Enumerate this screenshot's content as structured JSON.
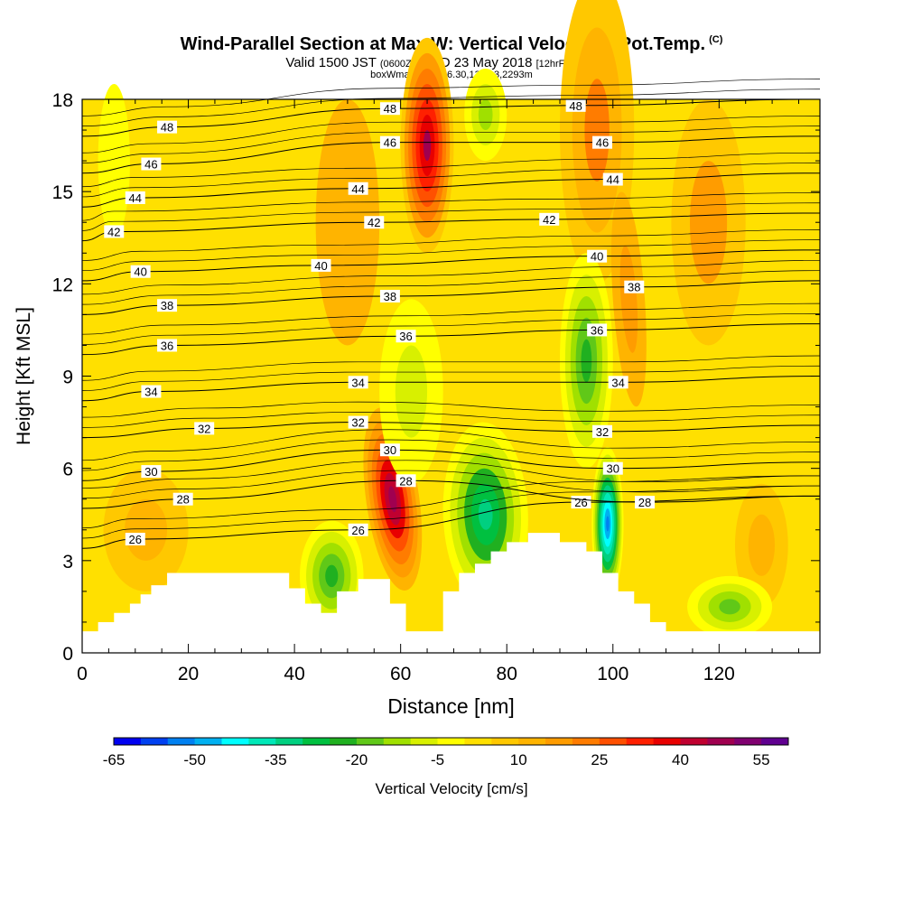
{
  "title": {
    "main": "Wind-Parallel Section at Max W: Vertical Velocity & Pot.Temp.",
    "copyright": "(C)",
    "line2_a": "Valid 1500 JST",
    "line2_b": "(0600Z)",
    "line2_c": "WED 23 May 2018",
    "line2_d": "[12hrFcst@2152z]",
    "line3": "boxWmax=58@36.30,138.13,2293m"
  },
  "chart_data": {
    "type": "heatmap",
    "xlabel": "Distance [nm]",
    "ylabel": "Height [Kft MSL]",
    "xlim": [
      0,
      139
    ],
    "ylim": [
      0,
      18
    ],
    "xticks": [
      0,
      20,
      40,
      60,
      80,
      100,
      120
    ],
    "yticks": [
      0,
      3,
      6,
      9,
      12,
      15,
      18
    ],
    "fill_variable": "Vertical Velocity [cm/s]",
    "contour_variable": "Potential Temperature",
    "colorbar": {
      "label": "Vertical Velocity [cm/s]",
      "min": -65,
      "max": 60,
      "step": 5,
      "tick_labels": [
        -65,
        -50,
        -35,
        -20,
        -5,
        10,
        25,
        40,
        55
      ],
      "colors": [
        "#0000f0",
        "#0040f0",
        "#0080f0",
        "#00b0f0",
        "#00ffff",
        "#00e8b8",
        "#00d080",
        "#00c040",
        "#20b020",
        "#60c818",
        "#a0e000",
        "#d8f000",
        "#ffff00",
        "#ffe000",
        "#ffc800",
        "#ffb400",
        "#ff9c00",
        "#ff7c00",
        "#ff5000",
        "#ff2000",
        "#e80000",
        "#c00030",
        "#a00050",
        "#800070",
        "#600090"
      ]
    },
    "vertical_velocity_features": [
      {
        "x": 58.5,
        "y": 5.0,
        "value": 48
      },
      {
        "x": 65,
        "y": 16.5,
        "value": 45
      },
      {
        "x": 97,
        "y": 17.0,
        "value": 20
      },
      {
        "x": 103,
        "y": 11.5,
        "value": 18
      },
      {
        "x": 99,
        "y": 4.2,
        "value": -55
      },
      {
        "x": 95,
        "y": 9.5,
        "value": -24
      },
      {
        "x": 76,
        "y": 4.5,
        "value": -33
      },
      {
        "x": 47,
        "y": 2.5,
        "value": -25
      },
      {
        "x": 62,
        "y": 8.5,
        "value": -6
      },
      {
        "x": 76,
        "y": 17.5,
        "value": -15
      },
      {
        "x": 6,
        "y": 16.0,
        "value": -2
      },
      {
        "x": 12,
        "y": 4.0,
        "value": 14
      },
      {
        "x": 50,
        "y": 14.0,
        "value": 12
      },
      {
        "x": 118,
        "y": 14.0,
        "value": 15
      },
      {
        "x": 128,
        "y": 3.5,
        "value": 14
      },
      {
        "x": 122,
        "y": 1.5,
        "value": -20
      }
    ],
    "isentropes": [
      {
        "theta": 26,
        "label_at": [
          [
            10,
            3.7
          ],
          [
            52,
            4.0
          ],
          [
            94,
            4.9
          ]
        ]
      },
      {
        "theta": 28,
        "label_at": [
          [
            19,
            5.0
          ],
          [
            61,
            5.6
          ],
          [
            106,
            4.9
          ]
        ]
      },
      {
        "theta": 30,
        "label_at": [
          [
            13,
            5.9
          ],
          [
            58,
            6.6
          ],
          [
            100,
            6.0
          ]
        ]
      },
      {
        "theta": 32,
        "label_at": [
          [
            23,
            7.3
          ],
          [
            52,
            7.5
          ],
          [
            98,
            7.2
          ]
        ]
      },
      {
        "theta": 34,
        "label_at": [
          [
            13,
            8.5
          ],
          [
            52,
            8.8
          ],
          [
            101,
            8.8
          ]
        ]
      },
      {
        "theta": 36,
        "label_at": [
          [
            16,
            10.0
          ],
          [
            61,
            10.3
          ],
          [
            97,
            10.5
          ]
        ]
      },
      {
        "theta": 38,
        "label_at": [
          [
            16,
            11.3
          ],
          [
            58,
            11.6
          ],
          [
            104,
            11.9
          ]
        ]
      },
      {
        "theta": 40,
        "label_at": [
          [
            11,
            12.4
          ],
          [
            45,
            12.6
          ],
          [
            97,
            12.9
          ]
        ]
      },
      {
        "theta": 42,
        "label_at": [
          [
            6,
            13.7
          ],
          [
            55,
            14.0
          ],
          [
            88,
            14.1
          ]
        ]
      },
      {
        "theta": 44,
        "label_at": [
          [
            10,
            14.8
          ],
          [
            52,
            15.1
          ],
          [
            100,
            15.4
          ]
        ]
      },
      {
        "theta": 46,
        "label_at": [
          [
            13,
            15.9
          ],
          [
            58,
            16.6
          ],
          [
            98,
            16.6
          ]
        ]
      },
      {
        "theta": 48,
        "label_at": [
          [
            16,
            17.1
          ],
          [
            58,
            17.7
          ],
          [
            93,
            17.8
          ]
        ]
      }
    ],
    "terrain_kft": [
      [
        0,
        0.7
      ],
      [
        3,
        0.7
      ],
      [
        3,
        1.0
      ],
      [
        6,
        1.0
      ],
      [
        6,
        1.3
      ],
      [
        9,
        1.3
      ],
      [
        9,
        1.6
      ],
      [
        11,
        1.6
      ],
      [
        11,
        1.9
      ],
      [
        13,
        1.9
      ],
      [
        13,
        2.2
      ],
      [
        16,
        2.2
      ],
      [
        16,
        2.6
      ],
      [
        39,
        2.6
      ],
      [
        39,
        2.1
      ],
      [
        42,
        2.1
      ],
      [
        42,
        1.6
      ],
      [
        45,
        1.6
      ],
      [
        45,
        1.3
      ],
      [
        48,
        1.3
      ],
      [
        48,
        2.0
      ],
      [
        52,
        2.0
      ],
      [
        52,
        2.4
      ],
      [
        58,
        2.4
      ],
      [
        58,
        1.6
      ],
      [
        61,
        1.6
      ],
      [
        61,
        0.7
      ],
      [
        68,
        0.7
      ],
      [
        68,
        2.0
      ],
      [
        71,
        2.0
      ],
      [
        71,
        2.6
      ],
      [
        74,
        2.6
      ],
      [
        74,
        2.9
      ],
      [
        77,
        2.9
      ],
      [
        77,
        3.3
      ],
      [
        80,
        3.3
      ],
      [
        80,
        3.6
      ],
      [
        84,
        3.6
      ],
      [
        84,
        3.9
      ],
      [
        90,
        3.9
      ],
      [
        90,
        3.6
      ],
      [
        95,
        3.6
      ],
      [
        95,
        3.3
      ],
      [
        98,
        3.3
      ],
      [
        98,
        2.6
      ],
      [
        101,
        2.6
      ],
      [
        101,
        2.0
      ],
      [
        104,
        2.0
      ],
      [
        104,
        1.6
      ],
      [
        107,
        1.6
      ],
      [
        107,
        1.0
      ],
      [
        110,
        1.0
      ],
      [
        110,
        0.7
      ],
      [
        139,
        0.7
      ],
      [
        139,
        0
      ],
      [
        0,
        0
      ]
    ]
  }
}
